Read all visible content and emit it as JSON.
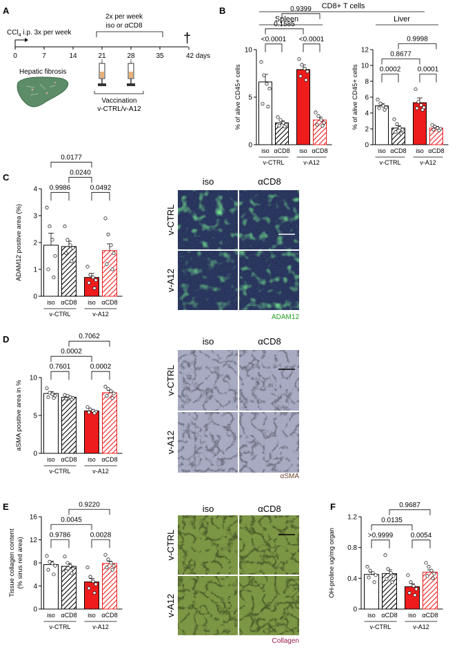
{
  "colors": {
    "vA12_red": "#ee1c1c",
    "hatch_red": "#ee1c1c",
    "hatch_black": "#000000",
    "adam12_label": "#22a022",
    "asma_label": "#6b3f2a",
    "collagen_label": "#9c1a4c",
    "fluor_bg": "#0b1a4a",
    "asma_bg": "#a4a7c4",
    "collagen_bg": "#6f8f2c"
  },
  "panel_labels": {
    "A": "A",
    "B": "B",
    "C": "C",
    "D": "D",
    "E": "E",
    "F": "F"
  },
  "timeline": {
    "treatment_line1": "2x per week",
    "treatment_line2": "iso or αCD8",
    "ccl4_prefix": "CCl",
    "ccl4_sub": "4",
    "ccl4_suffix": " i.p. 3x per week",
    "ticks": [
      "0",
      "7",
      "14",
      "21",
      "28",
      "35",
      "42 days"
    ],
    "fibrosis_label": "Hepatic fibrosis",
    "vaccination_line1": "Vaccination",
    "vaccination_line2": "v-CTRL/v-A12",
    "cross": "†",
    "icons": {
      "liver": "liver-icon",
      "syringe": "syringe-icon",
      "cross": "dagger-icon"
    }
  },
  "panelB": {
    "title": "CD8+ T cells",
    "spleen": "Spleen",
    "liver": "Liver"
  },
  "micrographs": {
    "C": {
      "cols": [
        "iso",
        "αCD8"
      ],
      "rows": [
        "v-CTRL",
        "v-A12"
      ],
      "stain": "ADAM12"
    },
    "D": {
      "cols": [
        "iso",
        "αCD8"
      ],
      "rows": [
        "v-CTRL",
        "v-A12"
      ],
      "stain": "αSMA"
    },
    "E": {
      "cols": [
        "iso",
        "αCD8"
      ],
      "rows": [
        "v-CTRL",
        "v-A12"
      ],
      "stain": "Collagen"
    }
  },
  "chart_data": [
    {
      "id": "B_spleen",
      "type": "bar",
      "categories": [
        "iso",
        "αCD8",
        "iso",
        "αCD8"
      ],
      "groups": [
        "v-CTRL",
        "v-A12"
      ],
      "values": [
        6.6,
        2.3,
        7.9,
        2.6
      ],
      "sem": [
        0.8,
        0.2,
        0.5,
        0.3
      ],
      "points": [
        [
          8.7,
          7.3,
          6.4,
          5.9,
          4.3,
          4.0
        ],
        [
          2.9,
          2.6,
          2.3,
          2.1,
          2.0,
          1.9
        ],
        [
          9.0,
          8.4,
          8.0,
          7.7,
          7.2,
          6.8
        ],
        [
          3.4,
          3.0,
          2.6,
          2.3,
          2.1,
          2.0
        ]
      ],
      "ylabel": "% of alive CD45+ cells",
      "ylim": [
        0,
        10
      ],
      "yticks": [
        "0",
        "5",
        "10"
      ],
      "brackets": [
        {
          "a": 0,
          "b": 1,
          "level": 0,
          "label": "<0.0001"
        },
        {
          "a": 2,
          "b": 3,
          "level": 0,
          "label": "<0.0001"
        },
        {
          "a": 0,
          "b": 2,
          "level": 1,
          "label": "0.1585"
        },
        {
          "a": 1,
          "b": 3,
          "level": 2,
          "label": "0.9399"
        }
      ]
    },
    {
      "id": "B_liver",
      "type": "bar",
      "categories": [
        "iso",
        "αCD8",
        "iso",
        "αCD8"
      ],
      "groups": [
        "v-CTRL",
        "v-A12"
      ],
      "values": [
        4.9,
        2.1,
        5.3,
        2.1
      ],
      "sem": [
        0.3,
        0.3,
        0.6,
        0.2
      ],
      "points": [
        [
          5.7,
          5.2,
          4.9,
          4.7,
          4.6,
          4.4
        ],
        [
          3.2,
          2.6,
          2.1,
          1.9,
          1.6,
          1.4
        ],
        [
          7.0,
          5.4,
          5.0,
          4.7,
          4.6,
          4.4
        ],
        [
          2.5,
          2.3,
          2.1,
          2.0,
          1.9,
          1.8
        ]
      ],
      "ylabel": "% of alive CD45+ cells",
      "ylim": [
        0,
        12
      ],
      "yticks": [
        "0",
        "2",
        "4",
        "6",
        "8",
        "10",
        "12"
      ],
      "brackets": [
        {
          "a": 0,
          "b": 1,
          "level": 0,
          "label": "0.0002"
        },
        {
          "a": 2,
          "b": 3,
          "level": 0,
          "label": "0.0001"
        },
        {
          "a": 0,
          "b": 2,
          "level": 1,
          "label": "0.8677"
        },
        {
          "a": 1,
          "b": 3,
          "level": 2,
          "label": "0.9998"
        }
      ]
    },
    {
      "id": "C",
      "type": "bar",
      "categories": [
        "iso",
        "αCD8",
        "iso",
        "αCD8"
      ],
      "groups": [
        "v-CTRL",
        "v-A12"
      ],
      "values": [
        1.9,
        1.85,
        0.7,
        1.7
      ],
      "sem": [
        0.45,
        0.2,
        0.15,
        0.25
      ],
      "points": [
        [
          3.3,
          2.6,
          2.1,
          1.5,
          1.0,
          0.7
        ],
        [
          2.6,
          2.1,
          1.9,
          1.8,
          1.6,
          1.3
        ],
        [
          1.1,
          0.8,
          0.7,
          0.6,
          0.5,
          0.3
        ],
        [
          2.9,
          2.3,
          1.9,
          1.6,
          1.2,
          1.0
        ]
      ],
      "ylabel": "ADAM12 positive area (%)",
      "ylim": [
        0,
        4
      ],
      "yticks": [
        "0",
        "1",
        "2",
        "3",
        "4"
      ],
      "brackets": [
        {
          "a": 0,
          "b": 1,
          "level": 0,
          "label": "0.9986"
        },
        {
          "a": 2,
          "b": 3,
          "level": 0,
          "label": "0.0492"
        },
        {
          "a": 1,
          "b": 2,
          "level": 1,
          "label": "0.0240"
        },
        {
          "a": 0,
          "b": 2,
          "level": 2,
          "label": "0.0177"
        }
      ]
    },
    {
      "id": "D",
      "type": "bar",
      "categories": [
        "iso",
        "αCD8",
        "iso",
        "αCD8"
      ],
      "groups": [
        "v-CTRL",
        "v-A12"
      ],
      "values": [
        7.9,
        7.4,
        5.6,
        8.0
      ],
      "sem": [
        0.25,
        0.15,
        0.2,
        0.3
      ],
      "points": [
        [
          8.6,
          8.0,
          7.8,
          7.6,
          7.4,
          7.3
        ],
        [
          7.7,
          7.6,
          7.4,
          7.3,
          7.2,
          7.1
        ],
        [
          6.1,
          5.8,
          5.6,
          5.5,
          5.4,
          5.3
        ],
        [
          8.8,
          8.5,
          8.2,
          7.9,
          7.6,
          7.3
        ]
      ],
      "ylabel": "aSMA positive area in %",
      "ylim": [
        0,
        10
      ],
      "yticks": [
        "0",
        "5",
        "10"
      ],
      "brackets": [
        {
          "a": 0,
          "b": 1,
          "level": 0,
          "label": "0.7601"
        },
        {
          "a": 2,
          "b": 3,
          "level": 0,
          "label": "0.0002"
        },
        {
          "a": 0,
          "b": 2,
          "level": 1,
          "label": "0.0002"
        },
        {
          "a": 1,
          "b": 3,
          "level": 2,
          "label": "0.7062"
        }
      ]
    },
    {
      "id": "E",
      "type": "bar",
      "categories": [
        "iso",
        "αCD8",
        "iso",
        "αCD8"
      ],
      "groups": [
        "v-CTRL",
        "v-A12"
      ],
      "values": [
        7.7,
        7.4,
        4.7,
        7.9
      ],
      "sem": [
        0.6,
        0.5,
        0.6,
        0.4
      ],
      "points": [
        [
          9.2,
          8.2,
          7.9,
          7.5,
          6.8,
          6.0
        ],
        [
          9.1,
          8.0,
          7.5,
          7.0,
          6.6,
          6.2
        ],
        [
          7.2,
          5.6,
          4.8,
          4.3,
          3.6,
          2.8
        ],
        [
          9.4,
          8.6,
          8.0,
          7.5,
          7.2,
          6.8
        ]
      ],
      "ylabel": "Tissue collagen content",
      "ylabel2": "(% sirus red area)",
      "ylim": [
        0,
        16
      ],
      "yticks": [
        "0",
        "4",
        "8",
        "12",
        "16"
      ],
      "brackets": [
        {
          "a": 0,
          "b": 1,
          "level": 0,
          "label": "0.9786"
        },
        {
          "a": 2,
          "b": 3,
          "level": 0,
          "label": "0.0028"
        },
        {
          "a": 0,
          "b": 2,
          "level": 1,
          "label": "0.0045"
        },
        {
          "a": 1,
          "b": 3,
          "level": 2,
          "label": "0.9220"
        }
      ]
    },
    {
      "id": "F",
      "type": "bar",
      "categories": [
        "iso",
        "αCD8",
        "iso",
        "αCD8"
      ],
      "groups": [
        "v-CTRL",
        "v-A12"
      ],
      "values": [
        0.45,
        0.46,
        0.29,
        0.48
      ],
      "sem": [
        0.03,
        0.05,
        0.04,
        0.03
      ],
      "points": [
        [
          0.55,
          0.5,
          0.47,
          0.44,
          0.41,
          0.35
        ],
        [
          0.7,
          0.52,
          0.47,
          0.43,
          0.39,
          0.35
        ],
        [
          0.44,
          0.35,
          0.3,
          0.26,
          0.21,
          0.18
        ],
        [
          0.6,
          0.55,
          0.5,
          0.46,
          0.43,
          0.4
        ]
      ],
      "ylabel": "OH-proline ug/mg organ",
      "ylim": [
        0,
        1.2
      ],
      "yticks": [
        "0",
        "0.4",
        "0.8",
        "1.2"
      ],
      "brackets": [
        {
          "a": 0,
          "b": 1,
          "level": 0,
          "label": ">0.9999"
        },
        {
          "a": 2,
          "b": 3,
          "level": 0,
          "label": "0.0054"
        },
        {
          "a": 0,
          "b": 2,
          "level": 1,
          "label": "0.0135"
        },
        {
          "a": 1,
          "b": 3,
          "level": 2,
          "label": "0.9687"
        }
      ]
    }
  ]
}
